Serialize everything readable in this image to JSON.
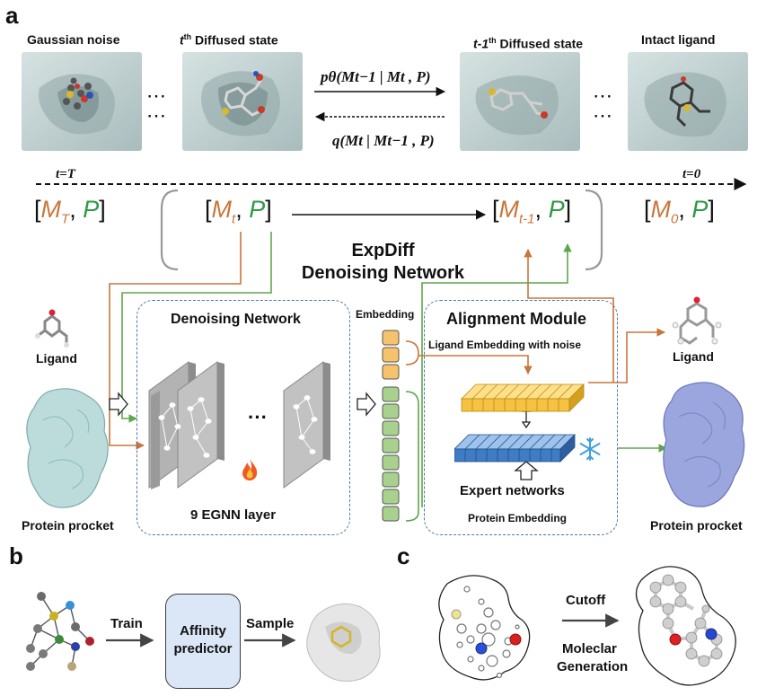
{
  "panels": {
    "a": "a",
    "b": "b",
    "c": "c"
  },
  "top_row": {
    "gaussian_noise": "Gaussian noise",
    "tth_prefix": "t",
    "tth_sup": "th",
    "tth_rest": " Diffused state",
    "t1_prefix": "t-1",
    "t1_sup": "th",
    "t1_rest": " Diffused state",
    "intact_ligand": "Intact ligand",
    "ellipsis": "⋯",
    "forward_formula": "pθ(Mt−1 | Mt , P)",
    "reverse_formula": "q(Mt | Mt−1 , P)"
  },
  "timeline": {
    "start": "t=T",
    "end": "t=0"
  },
  "states": {
    "open": "[",
    "close": "]",
    "comma": ",",
    "P": "P",
    "MT": "M",
    "MT_sub": "T",
    "Mt": "M",
    "Mt_sub": "t",
    "Mt1": "M",
    "Mt1_sub": "t-1",
    "M0": "M",
    "M0_sub": "0"
  },
  "network_title": {
    "line1": "ExpDiff",
    "line2": "Denoising Network"
  },
  "denoising": {
    "title": "Denoising Network",
    "layer_label": "9 EGNN layer",
    "dots": "···",
    "flame_icon": "fire-icon"
  },
  "embedding_label": "Embedding",
  "alignment": {
    "title": "Alignment Module",
    "ligand_embedding": "Ligand Embedding with noise",
    "expert_networks": "Expert networks",
    "protein_embedding": "Protein Embedding",
    "snowflake_icon": "snowflake-icon"
  },
  "left_inputs": {
    "ligand": "Ligand",
    "protein": "Protein procket"
  },
  "right_outputs": {
    "ligand": "Ligand",
    "protein": "Protein procket"
  },
  "panel_b": {
    "train": "Train",
    "predictor_line1": "Affinity",
    "predictor_line2": "predictor",
    "sample": "Sample"
  },
  "panel_c": {
    "cutoff": "Cutoff",
    "generation_line1": "Moleclar",
    "generation_line2": "Generation"
  },
  "colors": {
    "orange": "#c8763b",
    "green": "#2e9a44",
    "dash_blue": "#4b7aa6",
    "predictor_fill": "#dbe7f6",
    "yellow_bar": "#f5c242",
    "blue_bar": "#3f7cc4",
    "green_cell": "#a9d18e",
    "orange_cell": "#f6c26b"
  }
}
